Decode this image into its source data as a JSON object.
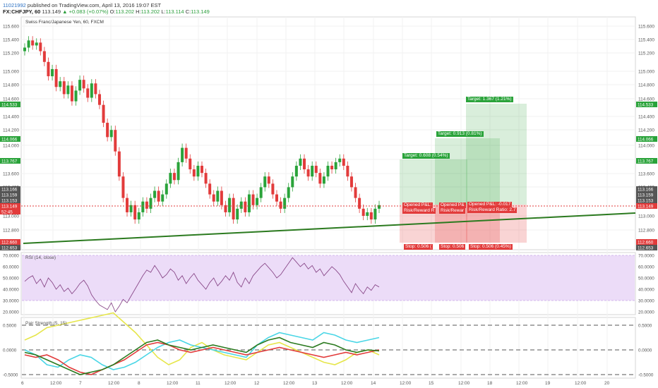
{
  "header": {
    "id_text": "11021992",
    "published_text": "published on TradingView.com, April 13, 2016 19:07 EST",
    "symbol": "FX:CHFJPY, 60",
    "last_price": "113.149",
    "change": "▲ +0.083 (+0.07%)",
    "ohlc": {
      "open_label": "O:",
      "open": "113.202",
      "high_label": "H:",
      "high": "113.202",
      "low_label": "L:",
      "low": "113.114",
      "close_label": "C:",
      "close": "113.149"
    }
  },
  "chart_title": "Swiss Franc/Japanese Yen, 60, FXCM",
  "price_axis_ticks": [
    "115.600",
    "115.400",
    "115.200",
    "115.000",
    "114.800",
    "114.600",
    "114.400",
    "114.200",
    "114.000",
    "113.800",
    "113.600",
    "113.400",
    "113.000",
    "112.800"
  ],
  "price_tags_right": [
    {
      "text": "114.533",
      "color": "#2aa33a"
    },
    {
      "text": "114.066",
      "color": "#2aa33a"
    },
    {
      "text": "113.767",
      "color": "#2aa33a"
    },
    {
      "text": "113.166",
      "color": "#555555"
    },
    {
      "text": "113.159",
      "color": "#555555"
    },
    {
      "text": "113.153",
      "color": "#555555"
    },
    {
      "text": "113.149",
      "color": "#e23b3b"
    },
    {
      "text": "112.660",
      "color": "#e23b3b"
    },
    {
      "text": "112.653",
      "color": "#555555"
    }
  ],
  "price_tags_left": [
    {
      "text": "114.533",
      "color": "#2aa33a"
    },
    {
      "text": "114.066",
      "color": "#2aa33a"
    },
    {
      "text": "113.767",
      "color": "#2aa33a"
    },
    {
      "text": "113.166",
      "color": "#555555"
    },
    {
      "text": "113.159",
      "color": "#555555"
    },
    {
      "text": "113.153",
      "color": "#555555"
    },
    {
      "text": "113.149",
      "color": "#e23b3b"
    },
    {
      "text": "52:45",
      "color": "#e23b3b"
    },
    {
      "text": "112.660",
      "color": "#e23b3b"
    },
    {
      "text": "112.653",
      "color": "#555555"
    }
  ],
  "positions": {
    "targets": [
      "Target: 0.608 (0.54%)",
      "Target: 0.913 (0.81%)",
      "Target: 1.367 (1.21%)"
    ],
    "pnl_1": "Opened P&L:",
    "rr_1": "Risk/Reward R",
    "pnl_2": "Opened P&",
    "rr_2": "Risk/Rewar",
    "pnl_3": "Opened P&L: -0.017",
    "rr_3": "Risk/Reward Ratio: 2.7",
    "stop_1": "Stop: 0.506 (",
    "stop_2": "Stop: 0.506",
    "stop_3": "Stop: 0.506 (0.45%)"
  },
  "rsi": {
    "label": "RSI (14, close)",
    "ticks": [
      "70.0000",
      "60.0000",
      "50.0000",
      "40.0000",
      "30.0000",
      "20.0000"
    ]
  },
  "pair_strength": {
    "label": "Pair Strength (5, 15)",
    "ticks": [
      "0.5000",
      "0.0000",
      "-0.5000"
    ]
  },
  "time_axis": [
    "6",
    "12:00",
    "7",
    "12:00",
    "8",
    "12:00",
    "11",
    "12:00",
    "12",
    "12:00",
    "13",
    "12:00",
    "14",
    "12:00",
    "15",
    "12:00",
    "18",
    "12:00",
    "19",
    "12:00",
    "20"
  ],
  "colors": {
    "up": "#2aa33a",
    "down": "#e23b3b",
    "trendline": "#2b7a1f",
    "rsi_band": "#ecdcf8",
    "rsi_line": "#8a4a8a"
  }
}
